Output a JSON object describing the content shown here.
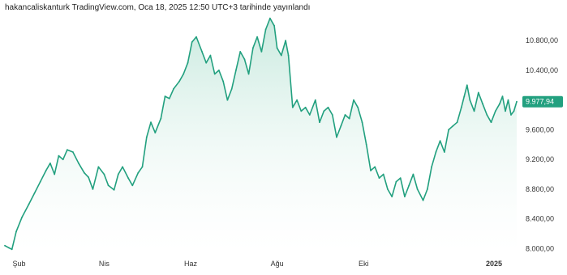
{
  "header": {
    "attribution": "hakancaliskanturk TradingView.com, Oca 18, 2025 12:50 UTC+3 tarihinde yayınlandı"
  },
  "colors": {
    "line": "#22a07f",
    "fill_top": "#bfe6d9",
    "fill_bottom": "#ffffff",
    "badge": "#22a07f",
    "axis_text": "#333333"
  },
  "chart_data": {
    "type": "area",
    "title": "",
    "xlabel": "",
    "ylabel": "",
    "ylim": [
      7950,
      11150
    ],
    "x_range": [
      "2024-01-22",
      "2025-01-17"
    ],
    "x_ticks": [
      {
        "date": "2024-02-01",
        "label": "Şub",
        "bold": false
      },
      {
        "date": "2024-04-01",
        "label": "Nis",
        "bold": false
      },
      {
        "date": "2024-06-01",
        "label": "Haz",
        "bold": false
      },
      {
        "date": "2024-08-01",
        "label": "Ağu",
        "bold": false
      },
      {
        "date": "2024-10-01",
        "label": "Eki",
        "bold": false
      },
      {
        "date": "2025-01-01",
        "label": "2025",
        "bold": true
      }
    ],
    "y_ticks": [
      {
        "value": 10800,
        "label": "10.800,00"
      },
      {
        "value": 10400,
        "label": "10.400,00"
      },
      {
        "value": 9600,
        "label": "9.600,00"
      },
      {
        "value": 9200,
        "label": "9.200,00"
      },
      {
        "value": 8800,
        "label": "8.800,00"
      },
      {
        "value": 8400,
        "label": "8.400,00"
      },
      {
        "value": 8000,
        "label": "8.000,00"
      }
    ],
    "last_value": 9977.94,
    "last_value_label": "9.977,94",
    "series": [
      {
        "points": [
          [
            "2024-01-22",
            8040
          ],
          [
            "2024-01-25",
            8010
          ],
          [
            "2024-01-27",
            7990
          ],
          [
            "2024-01-30",
            8230
          ],
          [
            "2024-02-03",
            8420
          ],
          [
            "2024-02-08",
            8600
          ],
          [
            "2024-02-12",
            8750
          ],
          [
            "2024-02-16",
            8900
          ],
          [
            "2024-02-20",
            9050
          ],
          [
            "2024-02-23",
            9150
          ],
          [
            "2024-02-26",
            9000
          ],
          [
            "2024-02-29",
            9250
          ],
          [
            "2024-03-03",
            9200
          ],
          [
            "2024-03-06",
            9330
          ],
          [
            "2024-03-10",
            9300
          ],
          [
            "2024-03-14",
            9150
          ],
          [
            "2024-03-18",
            9020
          ],
          [
            "2024-03-21",
            8960
          ],
          [
            "2024-03-24",
            8800
          ],
          [
            "2024-03-28",
            9100
          ],
          [
            "2024-04-01",
            9000
          ],
          [
            "2024-04-04",
            8850
          ],
          [
            "2024-04-08",
            8790
          ],
          [
            "2024-04-11",
            9000
          ],
          [
            "2024-04-14",
            9100
          ],
          [
            "2024-04-18",
            8950
          ],
          [
            "2024-04-21",
            8850
          ],
          [
            "2024-04-25",
            9020
          ],
          [
            "2024-04-28",
            9100
          ],
          [
            "2024-05-01",
            9500
          ],
          [
            "2024-05-04",
            9700
          ],
          [
            "2024-05-07",
            9560
          ],
          [
            "2024-05-11",
            9750
          ],
          [
            "2024-05-14",
            10050
          ],
          [
            "2024-05-17",
            10020
          ],
          [
            "2024-05-20",
            10150
          ],
          [
            "2024-05-24",
            10250
          ],
          [
            "2024-05-27",
            10350
          ],
          [
            "2024-05-30",
            10500
          ],
          [
            "2024-06-02",
            10780
          ],
          [
            "2024-06-05",
            10850
          ],
          [
            "2024-06-09",
            10650
          ],
          [
            "2024-06-12",
            10500
          ],
          [
            "2024-06-15",
            10600
          ],
          [
            "2024-06-18",
            10350
          ],
          [
            "2024-06-21",
            10400
          ],
          [
            "2024-06-24",
            10250
          ],
          [
            "2024-06-27",
            10000
          ],
          [
            "2024-06-30",
            10150
          ],
          [
            "2024-07-03",
            10400
          ],
          [
            "2024-07-06",
            10650
          ],
          [
            "2024-07-09",
            10550
          ],
          [
            "2024-07-12",
            10350
          ],
          [
            "2024-07-15",
            10700
          ],
          [
            "2024-07-18",
            10850
          ],
          [
            "2024-07-21",
            10650
          ],
          [
            "2024-07-24",
            10950
          ],
          [
            "2024-07-27",
            11100
          ],
          [
            "2024-07-30",
            11000
          ],
          [
            "2024-08-01",
            10700
          ],
          [
            "2024-08-04",
            10600
          ],
          [
            "2024-08-07",
            10800
          ],
          [
            "2024-08-09",
            10600
          ],
          [
            "2024-08-12",
            9900
          ],
          [
            "2024-08-15",
            10000
          ],
          [
            "2024-08-18",
            9850
          ],
          [
            "2024-08-21",
            9900
          ],
          [
            "2024-08-24",
            9800
          ],
          [
            "2024-08-28",
            10000
          ],
          [
            "2024-08-31",
            9700
          ],
          [
            "2024-09-03",
            9850
          ],
          [
            "2024-09-06",
            9900
          ],
          [
            "2024-09-09",
            9800
          ],
          [
            "2024-09-12",
            9500
          ],
          [
            "2024-09-15",
            9650
          ],
          [
            "2024-09-18",
            9800
          ],
          [
            "2024-09-21",
            9750
          ],
          [
            "2024-09-24",
            10000
          ],
          [
            "2024-09-27",
            9900
          ],
          [
            "2024-09-30",
            9700
          ],
          [
            "2024-10-03",
            9400
          ],
          [
            "2024-10-06",
            9050
          ],
          [
            "2024-10-09",
            9100
          ],
          [
            "2024-10-12",
            8950
          ],
          [
            "2024-10-15",
            9000
          ],
          [
            "2024-10-18",
            8800
          ],
          [
            "2024-10-21",
            8700
          ],
          [
            "2024-10-24",
            8900
          ],
          [
            "2024-10-27",
            8950
          ],
          [
            "2024-10-30",
            8700
          ],
          [
            "2024-11-02",
            8850
          ],
          [
            "2024-11-05",
            9000
          ],
          [
            "2024-11-08",
            8800
          ],
          [
            "2024-11-12",
            8650
          ],
          [
            "2024-11-15",
            8800
          ],
          [
            "2024-11-18",
            9100
          ],
          [
            "2024-11-21",
            9300
          ],
          [
            "2024-11-24",
            9450
          ],
          [
            "2024-11-27",
            9300
          ],
          [
            "2024-11-30",
            9600
          ],
          [
            "2024-12-03",
            9650
          ],
          [
            "2024-12-06",
            9700
          ],
          [
            "2024-12-09",
            9900
          ],
          [
            "2024-12-11",
            10050
          ],
          [
            "2024-12-13",
            10200
          ],
          [
            "2024-12-15",
            10000
          ],
          [
            "2024-12-18",
            9850
          ],
          [
            "2024-12-21",
            10100
          ],
          [
            "2024-12-24",
            9950
          ],
          [
            "2024-12-27",
            9800
          ],
          [
            "2024-12-30",
            9700
          ],
          [
            "2025-01-02",
            9850
          ],
          [
            "2025-01-05",
            9950
          ],
          [
            "2025-01-07",
            10050
          ],
          [
            "2025-01-09",
            9850
          ],
          [
            "2025-01-11",
            10000
          ],
          [
            "2025-01-13",
            9800
          ],
          [
            "2025-01-15",
            9850
          ],
          [
            "2025-01-17",
            9977.94
          ]
        ]
      }
    ]
  }
}
